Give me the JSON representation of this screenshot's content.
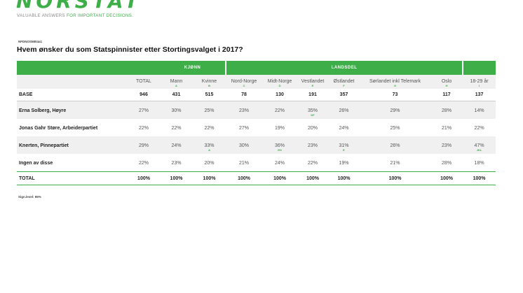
{
  "brand": {
    "logo": "NORSTAT",
    "tagline_plain": "VALUABLE ANSWERS ",
    "tagline_highlight": "FOR IMPORTANT DECISIONS.",
    "accent": "#3eae49"
  },
  "ref": "NFDNOS5804a1",
  "title": "Hvem ønsker du som Statspinnister etter Stortingsvalget i 2017?",
  "groups": {
    "kjonn": "KJØNN",
    "landsdel": "LANDSDEL"
  },
  "columns": [
    {
      "label": "TOTAL",
      "letter": ""
    },
    {
      "label": "Mann",
      "letter": "A"
    },
    {
      "label": "Kvinne",
      "letter": "B"
    },
    {
      "label": "Nord-Norge",
      "letter": "C"
    },
    {
      "label": "Midt-Norge",
      "letter": "D"
    },
    {
      "label": "Vestlandet",
      "letter": "E"
    },
    {
      "label": "Østlandet",
      "letter": "F"
    },
    {
      "label": "Sørlandet inkl Telemark",
      "letter": "G"
    },
    {
      "label": "Oslo",
      "letter": "H"
    },
    {
      "label": "18-29 år",
      "letter": "I"
    }
  ],
  "base": {
    "label": "BASE",
    "values": [
      "946",
      "431",
      "515",
      "78",
      "130",
      "191",
      "357",
      "73",
      "117",
      "137"
    ]
  },
  "rows": [
    {
      "label": "Erna Solberg, Høyre",
      "values": [
        "27%",
        "30%",
        "25%",
        "23%",
        "22%",
        "35%",
        "26%",
        "29%",
        "28%",
        "14%"
      ],
      "sig": [
        "",
        "",
        "",
        "",
        "",
        "DF",
        "",
        "",
        "",
        ""
      ]
    },
    {
      "label": "Jonas Gahr Støre, Arbeiderpartiet",
      "values": [
        "22%",
        "22%",
        "22%",
        "27%",
        "19%",
        "20%",
        "24%",
        "25%",
        "21%",
        "22%"
      ],
      "sig": [
        "",
        "",
        "",
        "",
        "",
        "",
        "",
        "",
        "",
        ""
      ]
    },
    {
      "label": "Knerten, Pinnepartiet",
      "values": [
        "29%",
        "24%",
        "33%",
        "30%",
        "36%",
        "23%",
        "31%",
        "26%",
        "23%",
        "47%"
      ],
      "sig": [
        "",
        "",
        "A",
        "",
        "EH",
        "",
        "E",
        "",
        "",
        "JKL"
      ]
    },
    {
      "label": "Ingen av disse",
      "values": [
        "22%",
        "23%",
        "20%",
        "21%",
        "24%",
        "22%",
        "19%",
        "21%",
        "28%",
        "18%"
      ],
      "sig": [
        "",
        "",
        "",
        "",
        "",
        "",
        "",
        "",
        "",
        ""
      ]
    }
  ],
  "total": {
    "label": "TOTAL",
    "values": [
      "100%",
      "100%",
      "100%",
      "100%",
      "100%",
      "100%",
      "100%",
      "100%",
      "100%",
      "100%"
    ]
  },
  "sig_level": "Sign.level: 95%"
}
